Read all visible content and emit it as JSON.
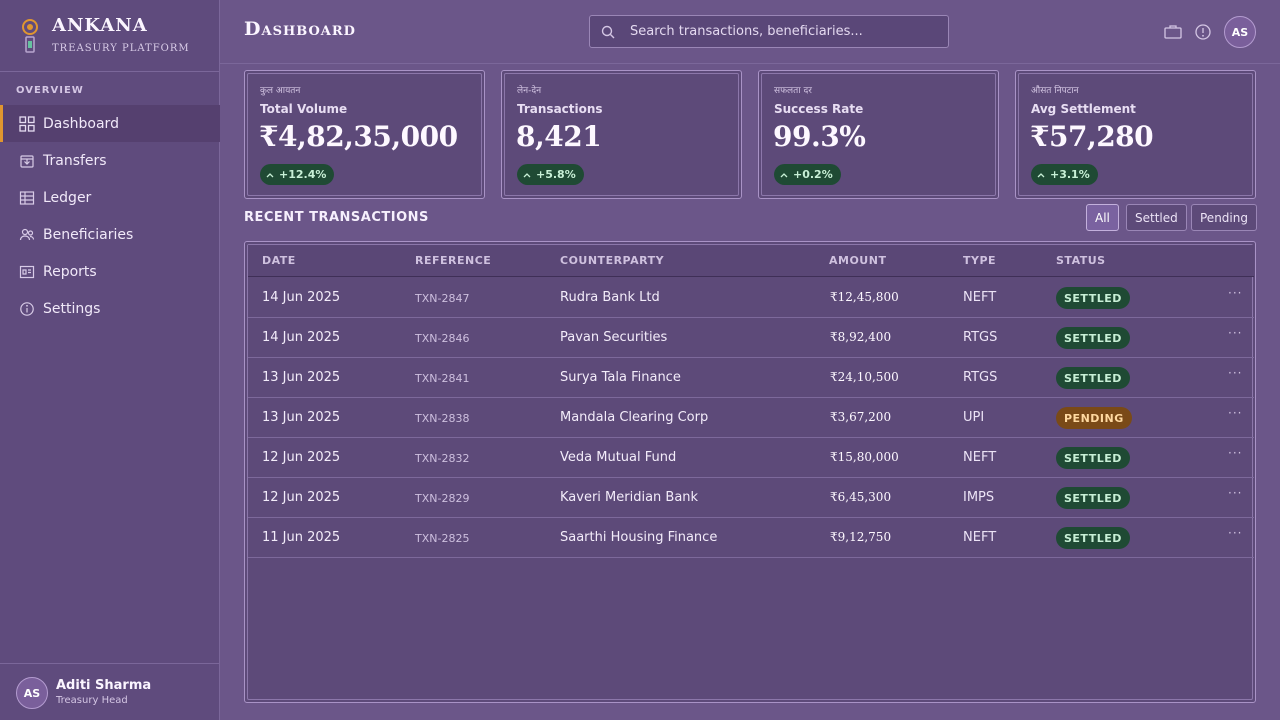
{
  "brand": {
    "name": "ANKANA",
    "subtitle": "TREASURY PLATFORM"
  },
  "sidebar": {
    "section": "OVERVIEW",
    "items": [
      {
        "label": "Dashboard",
        "icon": "grid-icon",
        "active": true
      },
      {
        "label": "Transfers",
        "icon": "transfer-icon",
        "active": false
      },
      {
        "label": "Ledger",
        "icon": "ledger-icon",
        "active": false
      },
      {
        "label": "Beneficiaries",
        "icon": "users-icon",
        "active": false
      },
      {
        "label": "Reports",
        "icon": "reports-icon",
        "active": false
      },
      {
        "label": "Settings",
        "icon": "info-icon",
        "active": false
      }
    ]
  },
  "user": {
    "initials": "AS",
    "name": "Aditi Sharma",
    "role": "Treasury Head"
  },
  "header": {
    "title": "Dashboard",
    "search_placeholder": "Search transactions, beneficiaries...",
    "avatar_initials": "AS",
    "icons": [
      "briefcase-icon",
      "alert-icon"
    ]
  },
  "cards": [
    {
      "native": "कुल आयतन",
      "label": "Total Volume",
      "value": "₹4,82,35,000",
      "delta": "+12.4%"
    },
    {
      "native": "लेन-देन",
      "label": "Transactions",
      "value": "8,421",
      "delta": "+5.8%"
    },
    {
      "native": "सफलता दर",
      "label": "Success Rate",
      "value": "99.3%",
      "delta": "+0.2%"
    },
    {
      "native": "औसत निपटान",
      "label": "Avg Settlement",
      "value": "₹57,280",
      "delta": "+3.1%"
    }
  ],
  "transactions": {
    "title": "RECENT TRANSACTIONS",
    "filters": [
      "All",
      "Settled",
      "Pending"
    ],
    "active_filter": "All",
    "columns": [
      "DATE",
      "REFERENCE",
      "COUNTERPARTY",
      "AMOUNT",
      "TYPE",
      "STATUS"
    ],
    "rows": [
      {
        "date": "14 Jun 2025",
        "ref": "TXN-2847",
        "party": "Rudra Bank Ltd",
        "amount": "₹12,45,800",
        "type": "NEFT",
        "status": "SETTLED"
      },
      {
        "date": "14 Jun 2025",
        "ref": "TXN-2846",
        "party": "Pavan Securities",
        "amount": "₹8,92,400",
        "type": "RTGS",
        "status": "SETTLED"
      },
      {
        "date": "13 Jun 2025",
        "ref": "TXN-2841",
        "party": "Surya Tala Finance",
        "amount": "₹24,10,500",
        "type": "RTGS",
        "status": "SETTLED"
      },
      {
        "date": "13 Jun 2025",
        "ref": "TXN-2838",
        "party": "Mandala Clearing Corp",
        "amount": "₹3,67,200",
        "type": "UPI",
        "status": "PENDING"
      },
      {
        "date": "12 Jun 2025",
        "ref": "TXN-2832",
        "party": "Veda Mutual Fund",
        "amount": "₹15,80,000",
        "type": "NEFT",
        "status": "SETTLED"
      },
      {
        "date": "12 Jun 2025",
        "ref": "TXN-2829",
        "party": "Kaveri Meridian Bank",
        "amount": "₹6,45,300",
        "type": "IMPS",
        "status": "SETTLED"
      },
      {
        "date": "11 Jun 2025",
        "ref": "TXN-2825",
        "party": "Saarthi Housing Finance",
        "amount": "₹9,12,750",
        "type": "NEFT",
        "status": "SETTLED"
      }
    ]
  },
  "colors": {
    "accent": "#e0962f",
    "settled_bg": "#1f4a34",
    "pending_bg": "#7a4a17"
  }
}
